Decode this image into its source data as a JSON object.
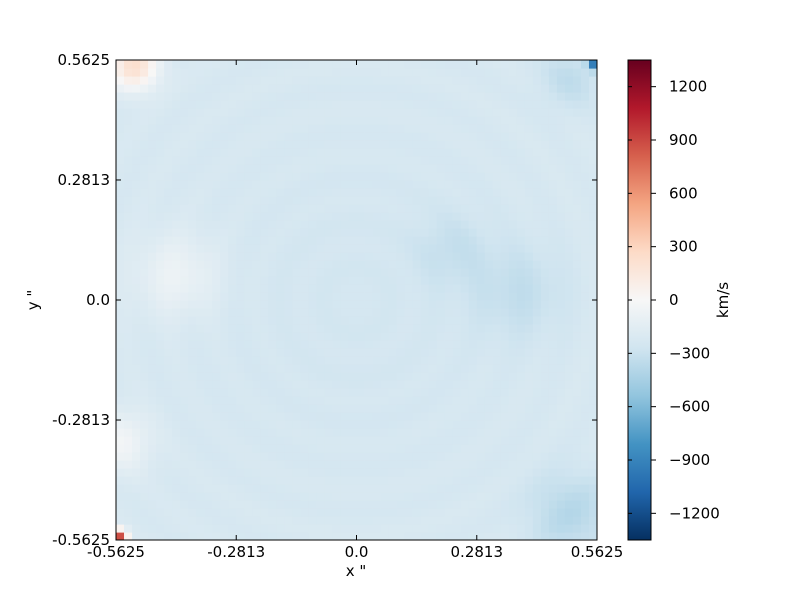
{
  "chart_data": {
    "type": "heatmap",
    "title": "",
    "xlabel": "x \"",
    "ylabel": "y \"",
    "xlim": [
      -0.5625,
      0.5625
    ],
    "ylim": [
      -0.5625,
      0.5625
    ],
    "x_ticks": [
      -0.5625,
      -0.2813,
      0.0,
      0.2813,
      0.5625
    ],
    "x_tick_labels": [
      "-0.5625",
      "-0.2813",
      "0.0",
      "0.2813",
      "0.5625"
    ],
    "y_ticks": [
      -0.5625,
      -0.2813,
      0.0,
      0.2813,
      0.5625
    ],
    "y_tick_labels": [
      "-0.5625",
      "-0.2813",
      "0.0",
      "0.2813",
      "0.5625"
    ],
    "colorbar": {
      "label": "km/s",
      "colormap": "RdBu_r",
      "vmin": -1350,
      "vmax": 1350,
      "ticks": [
        -1200,
        -900,
        -600,
        -300,
        0,
        300,
        600,
        900,
        1200
      ],
      "tick_labels": [
        "−1200",
        "−900",
        "−600",
        "−300",
        "0",
        "300",
        "600",
        "900",
        "1200"
      ]
    },
    "field": {
      "background_value": -220,
      "features": [
        {
          "x": -0.42,
          "y": 0.06,
          "value": -70,
          "sigma": 0.07
        },
        {
          "x": -0.52,
          "y": 0.55,
          "value": 220,
          "sigma": 0.04
        },
        {
          "x": -0.55,
          "y": -0.33,
          "value": -40,
          "sigma": 0.05
        },
        {
          "x": -0.555,
          "y": -0.555,
          "value": 900,
          "sigma": 0.012
        },
        {
          "x": 0.38,
          "y": 0.02,
          "value": -320,
          "sigma": 0.08
        },
        {
          "x": 0.22,
          "y": 0.12,
          "value": -300,
          "sigma": 0.06
        },
        {
          "x": 0.5,
          "y": -0.5,
          "value": -380,
          "sigma": 0.07
        },
        {
          "x": 0.5,
          "y": 0.52,
          "value": -340,
          "sigma": 0.05
        },
        {
          "x": 0.555,
          "y": 0.555,
          "value": -900,
          "sigma": 0.01
        },
        {
          "x": 0.0,
          "y": 0.0,
          "value": -250,
          "sigma": 0.3
        }
      ]
    }
  }
}
